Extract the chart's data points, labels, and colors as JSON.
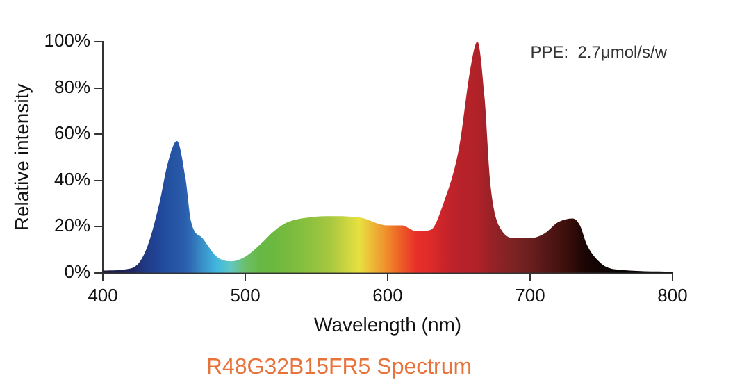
{
  "chart_data": {
    "type": "area",
    "title": "R48G32B15FR5 Spectrum",
    "xlabel": "Wavelength (nm)",
    "ylabel": "Relative intensity",
    "annotations": [
      "PPE:  2.7μmol/s/w"
    ],
    "x": [
      400,
      420,
      430,
      440,
      445,
      452,
      458,
      462,
      470,
      480,
      490,
      500,
      510,
      520,
      530,
      545,
      560,
      580,
      600,
      610,
      620,
      630,
      640,
      650,
      658,
      663,
      668,
      672,
      680,
      690,
      700,
      710,
      720,
      730,
      735,
      740,
      750,
      760,
      800
    ],
    "values": [
      1,
      2,
      9.5,
      31,
      46,
      57,
      41,
      22,
      15,
      7,
      5,
      7,
      12,
      18,
      22,
      24,
      24.5,
      24,
      20.5,
      20.5,
      18,
      18.6,
      31.6,
      53.7,
      88,
      100,
      76,
      39,
      18.4,
      15,
      15,
      17,
      22,
      23.5,
      20.5,
      12,
      4,
      1.5,
      0.5
    ],
    "colors": [
      "#1a1a3a",
      "#1f2560",
      "#213a85",
      "#21479a",
      "#2350a0",
      "#2656a5",
      "#2a5fae",
      "#2f6cb5",
      "#3a90c8",
      "#40b8e0",
      "#62c7c0",
      "#6cbf6a",
      "#66b945",
      "#6cb840",
      "#78bb3e",
      "#8cc13f",
      "#a8c840",
      "#e8e040",
      "#f08a2a",
      "#ec5a28",
      "#e8302a",
      "#de2a2a",
      "#c8242a",
      "#b8222a",
      "#b52228",
      "#b02228",
      "#a52228",
      "#9a2228",
      "#8a2226",
      "#7a2222",
      "#6a1e1e",
      "#581818",
      "#461210",
      "#320c08",
      "#220806",
      "#180504",
      "#100404",
      "#0a0303",
      "#050202"
    ],
    "xlim": [
      400,
      800
    ],
    "xticks": [
      400,
      500,
      600,
      700,
      800
    ],
    "ylim": [
      0,
      100
    ],
    "yticks": [
      {
        "value": 0,
        "label": "0%"
      },
      {
        "value": 20,
        "label": "20%"
      },
      {
        "value": 40,
        "label": "40%"
      },
      {
        "value": 60,
        "label": "60%"
      },
      {
        "value": 80,
        "label": "80%"
      },
      {
        "value": 100,
        "label": "100%"
      }
    ],
    "grid": false,
    "legend": false
  }
}
